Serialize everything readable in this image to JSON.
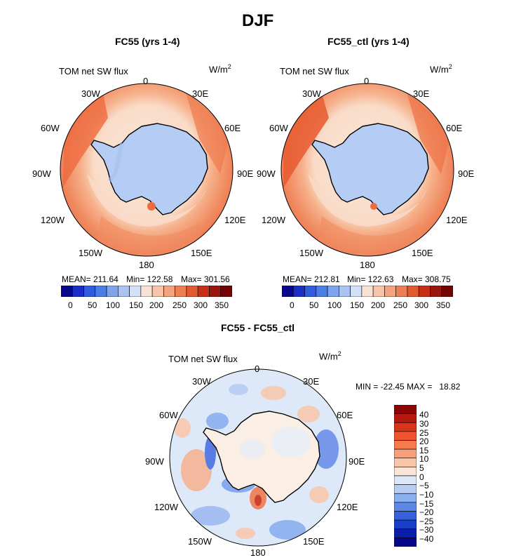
{
  "main_title": "DJF",
  "panels": [
    {
      "title": "FC55 (yrs 1-4)",
      "variable": "TOM net SW flux",
      "units": "W/m",
      "units_exp": "2",
      "lon_labels": [
        "0",
        "30E",
        "60E",
        "90E",
        "120E",
        "150E",
        "180",
        "150W",
        "120W",
        "90W",
        "60W",
        "30W"
      ],
      "stats": {
        "mean": "MEAN= 211.64",
        "min": "Min= 122.58",
        "max": "Max= 301.56"
      },
      "colorbar_ticks": [
        "0",
        "50",
        "100",
        "150",
        "200",
        "250",
        "300",
        "350"
      ]
    },
    {
      "title": "FC55_ctl (yrs 1-4)",
      "variable": "TOM net SW flux",
      "units": "W/m",
      "units_exp": "2",
      "lon_labels": [
        "0",
        "30E",
        "60E",
        "90E",
        "120E",
        "150E",
        "180",
        "150W",
        "120W",
        "90W",
        "60W",
        "30W"
      ],
      "stats": {
        "mean": "MEAN= 212.81",
        "min": "Min= 122.63",
        "max": "Max= 308.75"
      },
      "colorbar_ticks": [
        "0",
        "50",
        "100",
        "150",
        "200",
        "250",
        "300",
        "350"
      ]
    },
    {
      "title": "FC55 - FC55_ctl",
      "variable": "TOM net SW flux",
      "units": "W/m",
      "units_exp": "2",
      "lon_labels": [
        "0",
        "30E",
        "60E",
        "90E",
        "120E",
        "150E",
        "180",
        "150W",
        "120W",
        "90W",
        "60W",
        "30W"
      ],
      "stats_line": "MIN = -22.45 MAX =   18.82",
      "colorbar_ticks": [
        "40",
        "30",
        "25",
        "20",
        "15",
        "10",
        "5",
        "0",
        "−5",
        "−10",
        "−15",
        "−20",
        "−25",
        "−30",
        "−40"
      ]
    }
  ],
  "colors": {
    "abs_scale": [
      "#08088c",
      "#1a2fc8",
      "#2f5ce0",
      "#4a7fe8",
      "#7fa3ec",
      "#a9c4f2",
      "#d2e1f8",
      "#f8e2d6",
      "#f8c4a8",
      "#f5a27e",
      "#f07e55",
      "#e35a30",
      "#c63018",
      "#9a1410",
      "#720404"
    ],
    "diff_scale": [
      "#8c0404",
      "#b41810",
      "#dc3418",
      "#f0542c",
      "#f57a4e",
      "#f8a07c",
      "#fac6aa",
      "#fbe4d8",
      "#dce8f8",
      "#b6cdf4",
      "#8aaeee",
      "#5e88e6",
      "#3462dc",
      "#1a3ec8",
      "#0a1eaa",
      "#06068a"
    ],
    "land_blue": "#b5cdf5",
    "ocean_orange": "#f27e55",
    "ocean_light": "#f8c0a0",
    "ice_edge": "#f9e0cf"
  }
}
